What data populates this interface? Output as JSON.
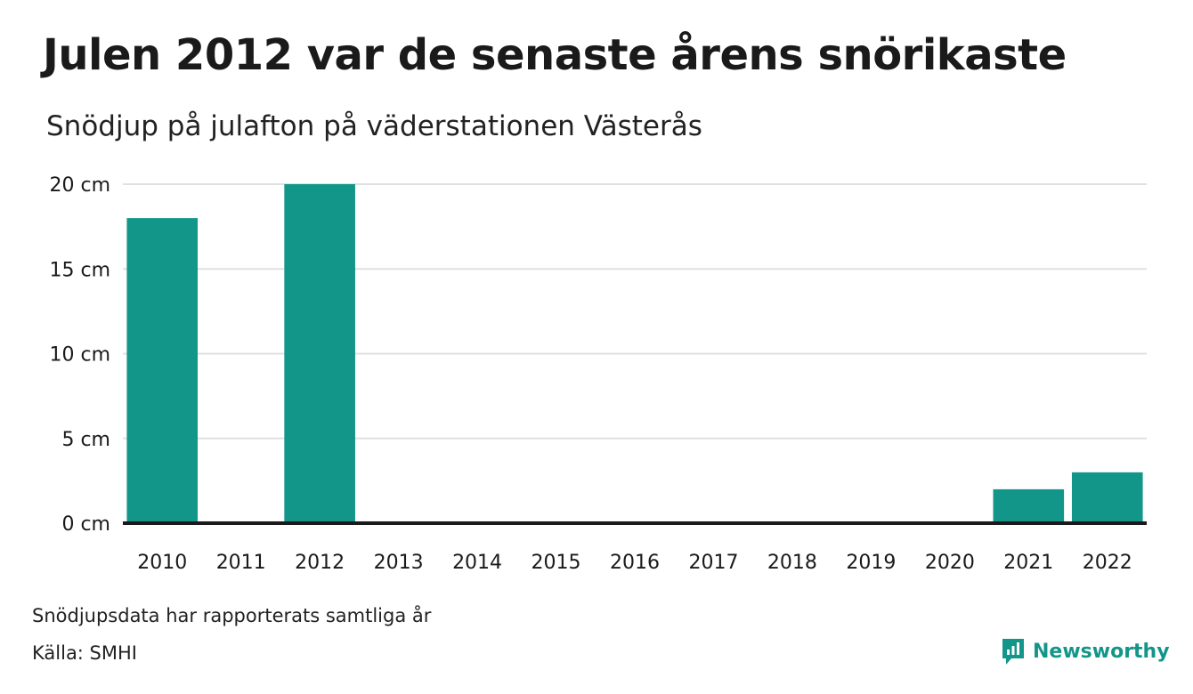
{
  "header": {
    "title": "Julen 2012 var de senaste årens snörikaste",
    "subtitle": "Snödjup på julafton på väderstationen Västerås"
  },
  "footer": {
    "note": "Snödjupsdata har rapporterats samtliga år",
    "source": "Källa: SMHI",
    "brand": "Newsworthy"
  },
  "colors": {
    "bar": "#13968a",
    "gridline": "#e0e0e0",
    "baseline": "#1a1a1a",
    "brand": "#13968a"
  },
  "chart_data": {
    "type": "bar",
    "categories": [
      "2010",
      "2011",
      "2012",
      "2013",
      "2014",
      "2015",
      "2016",
      "2017",
      "2018",
      "2019",
      "2020",
      "2021",
      "2022"
    ],
    "values": [
      18,
      0,
      20,
      0,
      0,
      0,
      0,
      0,
      0,
      0,
      0,
      2,
      3
    ],
    "unit": "cm",
    "ylim": [
      0,
      20
    ],
    "yticks": [
      0,
      5,
      10,
      15,
      20
    ],
    "ytick_labels": [
      "0 cm",
      "5 cm",
      "10 cm",
      "15 cm",
      "20 cm"
    ],
    "grid": true,
    "legend": "none",
    "title": "Julen 2012 var de senaste årens snörikaste",
    "subtitle": "Snödjup på julafton på väderstationen Västerås",
    "xlabel": "",
    "ylabel": ""
  }
}
